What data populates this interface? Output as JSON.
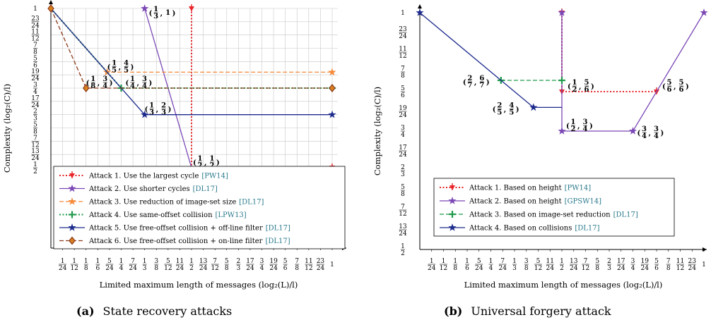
{
  "colors": {
    "red": "#e8262a",
    "purple": "#7b48b5",
    "orange": "#f58a3a",
    "green": "#1f9a4a",
    "navy": "#1c2a8c",
    "brown": "#8b3a1a",
    "grid": "#c8c8c8",
    "cite": "#2b7a8c"
  },
  "chart_data": [
    {
      "id": "a",
      "type": "line",
      "caption_label": "(a)",
      "caption_text": "State recovery attacks",
      "xlabel": "Limited maximum length of messages (log₂(L)/l)",
      "ylabel": "Complexity (log₂(C)/l)",
      "xlim": [
        0,
        1
      ],
      "ylim": [
        0.5,
        1
      ],
      "grid": true,
      "legend_position": "bottom-right",
      "xticks": [
        {
          "v": 0.041667,
          "n": "1",
          "d": "24"
        },
        {
          "v": 0.083333,
          "n": "1",
          "d": "12"
        },
        {
          "v": 0.125,
          "n": "1",
          "d": "8"
        },
        {
          "v": 0.166667,
          "n": "1",
          "d": "6"
        },
        {
          "v": 0.208333,
          "n": "5",
          "d": "24"
        },
        {
          "v": 0.25,
          "n": "1",
          "d": "4"
        },
        {
          "v": 0.291667,
          "n": "7",
          "d": "24"
        },
        {
          "v": 0.333333,
          "n": "1",
          "d": "3"
        },
        {
          "v": 0.375,
          "n": "3",
          "d": "8"
        },
        {
          "v": 0.416667,
          "n": "5",
          "d": "12"
        },
        {
          "v": 0.458333,
          "n": "11",
          "d": "24"
        },
        {
          "v": 0.5,
          "n": "1",
          "d": "2"
        },
        {
          "v": 0.541667,
          "n": "13",
          "d": "24"
        },
        {
          "v": 0.583333,
          "n": "7",
          "d": "12"
        },
        {
          "v": 0.625,
          "n": "5",
          "d": "8"
        },
        {
          "v": 0.666667,
          "n": "2",
          "d": "3"
        },
        {
          "v": 0.708333,
          "n": "17",
          "d": "24"
        },
        {
          "v": 0.75,
          "n": "3",
          "d": "4"
        },
        {
          "v": 0.791667,
          "n": "19",
          "d": "24"
        },
        {
          "v": 0.833333,
          "n": "5",
          "d": "6"
        },
        {
          "v": 0.875,
          "n": "7",
          "d": "8"
        },
        {
          "v": 0.916667,
          "n": "11",
          "d": "12"
        },
        {
          "v": 0.958333,
          "n": "23",
          "d": "24"
        },
        {
          "v": 1,
          "n": "1",
          "d": ""
        }
      ],
      "yticks": [
        {
          "v": 1,
          "n": "1",
          "d": ""
        },
        {
          "v": 0.958333,
          "n": "23",
          "d": "24"
        },
        {
          "v": 0.916667,
          "n": "11",
          "d": "12"
        },
        {
          "v": 0.875,
          "n": "7",
          "d": "8"
        },
        {
          "v": 0.833333,
          "n": "5",
          "d": "6"
        },
        {
          "v": 0.791667,
          "n": "19",
          "d": "24"
        },
        {
          "v": 0.75,
          "n": "3",
          "d": "4"
        },
        {
          "v": 0.708333,
          "n": "17",
          "d": "24"
        },
        {
          "v": 0.666667,
          "n": "2",
          "d": "3"
        },
        {
          "v": 0.625,
          "n": "5",
          "d": "8"
        },
        {
          "v": 0.583333,
          "n": "7",
          "d": "12"
        },
        {
          "v": 0.541667,
          "n": "13",
          "d": "24"
        },
        {
          "v": 0.5,
          "n": "1",
          "d": "2"
        }
      ],
      "series": [
        {
          "name": "Attack 1. Use the largest cycle",
          "cite": "[PW14]",
          "color_key": "red",
          "style": "dotted",
          "marker": "tri",
          "points": [
            [
              0.5,
              1
            ],
            [
              0.5,
              0.5
            ]
          ],
          "marker_points": [
            [
              0.5,
              1
            ],
            [
              1,
              0.5
            ]
          ]
        },
        {
          "name": "Attack 2. Use shorter cycles",
          "cite": "[DL17]",
          "color_key": "purple",
          "style": "solid",
          "marker": "star",
          "points": [
            [
              0.333333,
              1
            ],
            [
              0.5,
              0.5
            ]
          ],
          "marker_points": [
            [
              0.333333,
              1
            ]
          ]
        },
        {
          "name": "Attack 3. Use reduction of image-set size",
          "cite": "[DL17]",
          "color_key": "orange",
          "style": "dashed",
          "marker": "star",
          "points": [
            [
              0,
              1
            ],
            [
              0.2,
              0.8
            ],
            [
              1,
              0.8
            ]
          ],
          "marker_points": [
            [
              0.2,
              0.8
            ],
            [
              1,
              0.8
            ]
          ]
        },
        {
          "name": "Attack 4. Use same-offset collision",
          "cite": "[LPW13]",
          "color_key": "green",
          "style": "dotted",
          "marker": "cross",
          "points": [
            [
              0,
              1
            ],
            [
              0.25,
              0.75
            ],
            [
              1,
              0.75
            ]
          ],
          "marker_points": [
            [
              0.25,
              0.75
            ],
            [
              1,
              0.75
            ]
          ]
        },
        {
          "name": "Attack 5. Use free-offset collision + off-line filter",
          "cite": "[DL17]",
          "color_key": "navy",
          "style": "solid",
          "marker": "star",
          "points": [
            [
              0,
              1
            ],
            [
              0.333333,
              0.666667
            ],
            [
              1,
              0.666667
            ]
          ],
          "marker_points": [
            [
              0.333333,
              0.666667
            ],
            [
              1,
              0.666667
            ]
          ]
        },
        {
          "name": "Attack 6. Use free-offset collision + on-line filter",
          "cite": "[DL17]",
          "color_key": "brown",
          "style": "dashed",
          "marker": "diamond",
          "points": [
            [
              0,
              1
            ],
            [
              0.125,
              0.75
            ],
            [
              1,
              0.75
            ]
          ],
          "marker_points": [
            [
              0,
              1
            ],
            [
              0.125,
              0.75
            ],
            [
              1,
              0.75
            ]
          ]
        }
      ],
      "annotations": [
        {
          "n1": "1",
          "d1": "3",
          "n2": "1",
          "d2": "",
          "x": 0.333333,
          "y": 1,
          "dx": 6,
          "dy": 6
        },
        {
          "n1": "1",
          "d1": "5",
          "n2": "4",
          "d2": "5",
          "x": 0.2,
          "y": 0.8,
          "dx": 0,
          "dy": -8
        },
        {
          "n1": "1",
          "d1": "8",
          "n2": "3",
          "d2": "4",
          "x": 0.125,
          "y": 0.75,
          "dx": 0,
          "dy": -8
        },
        {
          "n1": "1",
          "d1": "4",
          "n2": "3",
          "d2": "4",
          "x": 0.25,
          "y": 0.75,
          "dx": 6,
          "dy": -8
        },
        {
          "n1": "1",
          "d1": "3",
          "n2": "2",
          "d2": "3",
          "x": 0.333333,
          "y": 0.666667,
          "dx": 0,
          "dy": -8
        },
        {
          "n1": "1",
          "d1": "2",
          "n2": "1",
          "d2": "2",
          "x": 0.5,
          "y": 0.5,
          "dx": 2,
          "dy": -8
        }
      ]
    },
    {
      "id": "b",
      "type": "line",
      "caption_label": "(b)",
      "caption_text": "Universal forgery attack",
      "xlabel": "Limited maximum length of messages (log₂(L)/l)",
      "ylabel": "Complexity (log₂(C)/l)",
      "xlim": [
        0,
        1
      ],
      "ylim": [
        0.5,
        1
      ],
      "grid": false,
      "legend_position": "bottom-left",
      "xticks": [
        {
          "v": 0.041667,
          "n": "1",
          "d": "24"
        },
        {
          "v": 0.083333,
          "n": "1",
          "d": "12"
        },
        {
          "v": 0.125,
          "n": "1",
          "d": "8"
        },
        {
          "v": 0.166667,
          "n": "1",
          "d": "6"
        },
        {
          "v": 0.208333,
          "n": "5",
          "d": "24"
        },
        {
          "v": 0.25,
          "n": "1",
          "d": "4"
        },
        {
          "v": 0.291667,
          "n": "7",
          "d": "24"
        },
        {
          "v": 0.333333,
          "n": "1",
          "d": "3"
        },
        {
          "v": 0.375,
          "n": "3",
          "d": "8"
        },
        {
          "v": 0.416667,
          "n": "5",
          "d": "12"
        },
        {
          "v": 0.458333,
          "n": "11",
          "d": "24"
        },
        {
          "v": 0.5,
          "n": "1",
          "d": "2"
        },
        {
          "v": 0.541667,
          "n": "13",
          "d": "24"
        },
        {
          "v": 0.583333,
          "n": "7",
          "d": "12"
        },
        {
          "v": 0.625,
          "n": "5",
          "d": "8"
        },
        {
          "v": 0.666667,
          "n": "2",
          "d": "3"
        },
        {
          "v": 0.708333,
          "n": "17",
          "d": "24"
        },
        {
          "v": 0.75,
          "n": "3",
          "d": "4"
        },
        {
          "v": 0.791667,
          "n": "19",
          "d": "24"
        },
        {
          "v": 0.833333,
          "n": "5",
          "d": "6"
        },
        {
          "v": 0.875,
          "n": "7",
          "d": "8"
        },
        {
          "v": 0.916667,
          "n": "11",
          "d": "12"
        },
        {
          "v": 0.958333,
          "n": "23",
          "d": "24"
        },
        {
          "v": 1,
          "n": "1",
          "d": ""
        }
      ],
      "yticks": [
        {
          "v": 1,
          "n": "1",
          "d": ""
        },
        {
          "v": 0.958333,
          "n": "23",
          "d": "24"
        },
        {
          "v": 0.916667,
          "n": "11",
          "d": "12"
        },
        {
          "v": 0.875,
          "n": "7",
          "d": "8"
        },
        {
          "v": 0.833333,
          "n": "5",
          "d": "6"
        },
        {
          "v": 0.791667,
          "n": "19",
          "d": "24"
        },
        {
          "v": 0.75,
          "n": "3",
          "d": "4"
        },
        {
          "v": 0.708333,
          "n": "17",
          "d": "24"
        },
        {
          "v": 0.666667,
          "n": "2",
          "d": "3"
        },
        {
          "v": 0.625,
          "n": "5",
          "d": "8"
        },
        {
          "v": 0.583333,
          "n": "7",
          "d": "12"
        },
        {
          "v": 0.541667,
          "n": "13",
          "d": "24"
        },
        {
          "v": 0.5,
          "n": "1",
          "d": "2"
        }
      ],
      "series": [
        {
          "name": "Attack 1. Based on height",
          "cite": "[PW14]",
          "color_key": "red",
          "style": "dotted",
          "marker": "tri",
          "points": [
            [
              0.5,
              1
            ],
            [
              0.5,
              0.833333
            ],
            [
              0.833333,
              0.833333
            ]
          ],
          "marker_points": [
            [
              0.5,
              1
            ],
            [
              0.5,
              0.833333
            ],
            [
              0.833333,
              0.833333
            ]
          ]
        },
        {
          "name": "Attack 2. Based on height",
          "cite": "[GPSW14]",
          "color_key": "purple",
          "style": "solid",
          "marker": "star",
          "points": [
            [
              0.5,
              1
            ],
            [
              0.5,
              0.75
            ],
            [
              0.75,
              0.75
            ],
            [
              1,
              1
            ]
          ],
          "marker_points": [
            [
              0.5,
              1
            ],
            [
              0.5,
              0.75
            ],
            [
              0.75,
              0.75
            ],
            [
              1,
              1
            ]
          ]
        },
        {
          "name": "Attack 3. Based on image-set reduction",
          "cite": "[DL17]",
          "color_key": "green",
          "style": "dashed",
          "marker": "cross",
          "points": [
            [
              0.285714,
              0.857143
            ],
            [
              0.5,
              0.857143
            ]
          ],
          "marker_points": [
            [
              0.285714,
              0.857143
            ],
            [
              0.5,
              0.857143
            ]
          ]
        },
        {
          "name": "Attack 4. Based on collisions",
          "cite": "[DL17]",
          "color_key": "navy",
          "style": "solid",
          "marker": "star",
          "points": [
            [
              0,
              1
            ],
            [
              0.4,
              0.8
            ],
            [
              0.5,
              0.8
            ]
          ],
          "marker_points": [
            [
              0,
              1
            ],
            [
              0.4,
              0.8
            ]
          ]
        }
      ],
      "annotations": [
        {
          "n1": "2",
          "d1": "7",
          "n2": "6",
          "d2": "7",
          "x": 0.285714,
          "y": 0.857143,
          "dx": -54,
          "dy": 2
        },
        {
          "n1": "1",
          "d1": "2",
          "n2": "5",
          "d2": "6",
          "x": 0.5,
          "y": 0.833333,
          "dx": 8,
          "dy": -8
        },
        {
          "n1": "2",
          "d1": "5",
          "n2": "4",
          "d2": "5",
          "x": 0.4,
          "y": 0.8,
          "dx": -58,
          "dy": 2
        },
        {
          "n1": "1",
          "d1": "2",
          "n2": "3",
          "d2": "4",
          "x": 0.5,
          "y": 0.75,
          "dx": 6,
          "dy": -8
        },
        {
          "n1": "3",
          "d1": "4",
          "n2": "3",
          "d2": "4",
          "x": 0.75,
          "y": 0.75,
          "dx": 6,
          "dy": 2
        },
        {
          "n1": "5",
          "d1": "6",
          "n2": "5",
          "d2": "6",
          "x": 0.833333,
          "y": 0.833333,
          "dx": 8,
          "dy": -8
        }
      ]
    }
  ]
}
